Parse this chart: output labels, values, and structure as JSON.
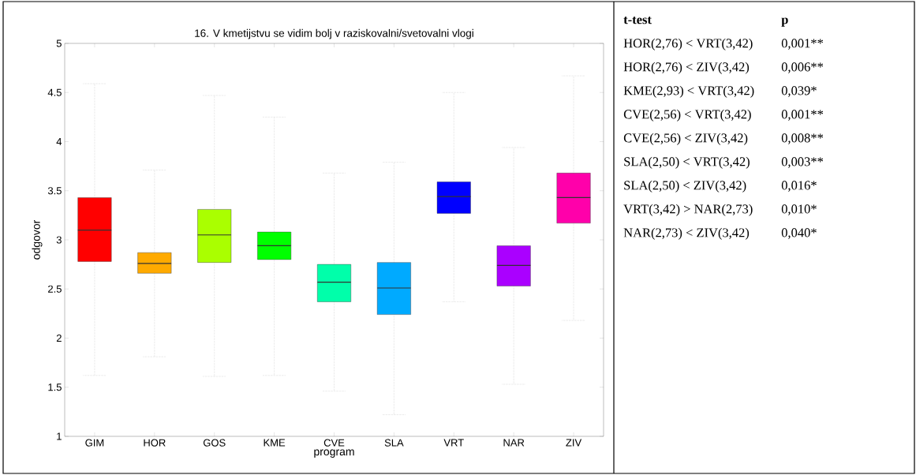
{
  "chart_data": [
    {
      "type": "box",
      "title": "16. V kmetijstvu se vidim bolj v raziskovalni/svetovalni vlogi",
      "xlabel": "program",
      "ylabel": "odgovor",
      "categories": [
        "GIM",
        "HOR",
        "GOS",
        "KME",
        "CVE",
        "SLA",
        "VRT",
        "NAR",
        "ZIV"
      ],
      "colors": [
        "#ff0000",
        "#ffaa00",
        "#aaff00",
        "#00ff00",
        "#00ffaa",
        "#00aaff",
        "#0000ff",
        "#aa00ff",
        "#ff00aa"
      ],
      "boxes": [
        {
          "low": 1.62,
          "q1": 2.78,
          "median": 3.1,
          "q3": 3.43,
          "high": 4.59
        },
        {
          "low": 1.81,
          "q1": 2.66,
          "median": 2.76,
          "q3": 2.87,
          "high": 3.71
        },
        {
          "low": 1.61,
          "q1": 2.77,
          "median": 3.05,
          "q3": 3.31,
          "high": 4.47
        },
        {
          "low": 1.62,
          "q1": 2.8,
          "median": 2.94,
          "q3": 3.08,
          "high": 4.25
        },
        {
          "low": 1.46,
          "q1": 2.37,
          "median": 2.57,
          "q3": 2.75,
          "high": 3.68
        },
        {
          "low": 1.22,
          "q1": 2.24,
          "median": 2.51,
          "q3": 2.77,
          "high": 3.79
        },
        {
          "low": 2.37,
          "q1": 3.27,
          "median": 3.44,
          "q3": 3.59,
          "high": 4.5
        },
        {
          "low": 1.53,
          "q1": 2.53,
          "median": 2.74,
          "q3": 2.94,
          "high": 3.94
        },
        {
          "low": 2.18,
          "q1": 3.17,
          "median": 3.43,
          "q3": 3.68,
          "high": 4.67
        }
      ],
      "ylim": [
        1,
        5
      ],
      "yticks": [
        1,
        1.5,
        2,
        2.5,
        3,
        3.5,
        4,
        4.5,
        5
      ],
      "grid": false
    },
    {
      "type": "other",
      "annotations": [
        "t-test",
        "p",
        "HOR(2,76) < VRT(3,42)",
        "0,001**",
        "HOR(2,76) < ZIV(3,42)",
        "0,006**",
        "KME(2,93) < VRT(3,42)",
        "0,039*",
        "CVE(2,56) < VRT(3,42)",
        "0,001**",
        "CVE(2,56) < ZIV(3,42)",
        "0,008**",
        "SLA(2,50) < VRT(3,42)",
        "0,003**",
        "SLA(2,50) < ZIV(3,42)",
        "0,016*",
        "VRT(3,42) > NAR(2,73)",
        "0,010*",
        "NAR(2,73) < ZIV(3,42)",
        "0,040*"
      ]
    }
  ]
}
